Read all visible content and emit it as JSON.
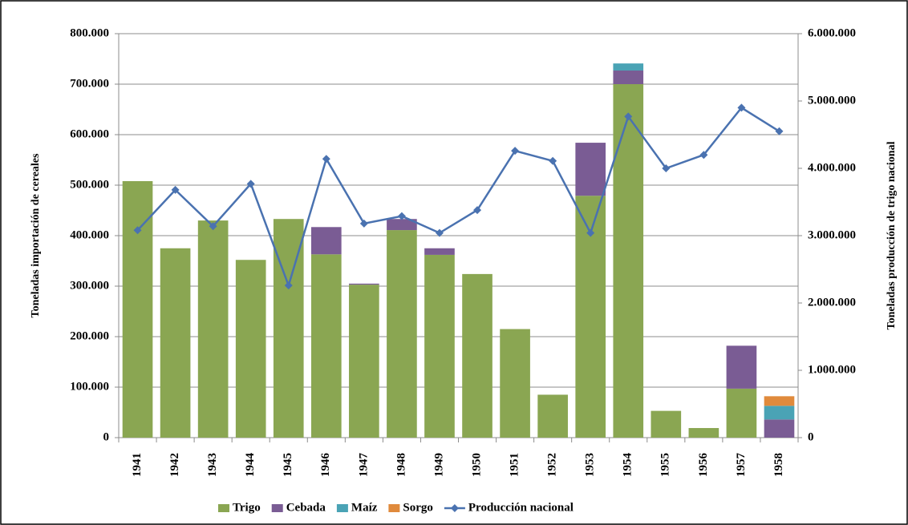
{
  "chart_data": {
    "type": "bar",
    "stacked": true,
    "ylabel": "Toneladas importación de cereales",
    "y2label": "Toneladas producción de trigo nacional",
    "categories": [
      "1941",
      "1942",
      "1943",
      "1944",
      "1945",
      "1946",
      "1947",
      "1948",
      "1949",
      "1950",
      "1951",
      "1952",
      "1953",
      "1954",
      "1955",
      "1956",
      "1957",
      "1958"
    ],
    "series": [
      {
        "name": "Trigo",
        "color": "#8aa652",
        "values": [
          508000,
          375000,
          430000,
          352000,
          433000,
          363000,
          303000,
          411000,
          362000,
          324000,
          215000,
          85000,
          479000,
          700000,
          53000,
          19000,
          97000,
          0
        ]
      },
      {
        "name": "Cebada",
        "color": "#7a5c94",
        "values": [
          0,
          0,
          0,
          0,
          0,
          54000,
          2000,
          22000,
          13000,
          0,
          0,
          0,
          105000,
          27000,
          0,
          0,
          85000,
          36000
        ]
      },
      {
        "name": "Maíz",
        "color": "#4aa3b5",
        "values": [
          0,
          0,
          0,
          0,
          0,
          0,
          0,
          0,
          0,
          0,
          0,
          0,
          0,
          14000,
          0,
          0,
          0,
          27000
        ]
      },
      {
        "name": "Sorgo",
        "color": "#e08a3c",
        "values": [
          0,
          0,
          0,
          0,
          0,
          0,
          0,
          0,
          0,
          0,
          0,
          0,
          0,
          0,
          0,
          0,
          0,
          19000
        ]
      },
      {
        "name": "Producción nacional",
        "color": "#4a72b0",
        "type": "line",
        "axis": "y2",
        "values": [
          3080000,
          3680000,
          3140000,
          3770000,
          2260000,
          4140000,
          3180000,
          3290000,
          3040000,
          3380000,
          4260000,
          4110000,
          3040000,
          4770000,
          4000000,
          4200000,
          4900000,
          4550000
        ]
      }
    ],
    "ylim": [
      0,
      800000
    ],
    "yticks": [
      0,
      {
        "value": 100000,
        "label": "100.000"
      },
      {
        "value": 200000,
        "label": "200.000"
      },
      {
        "value": 300000,
        "label": "300.000"
      },
      {
        "value": 400000,
        "label": "400.000"
      },
      {
        "value": 500000,
        "label": "500.000"
      },
      {
        "value": 600000,
        "label": "600.000"
      },
      {
        "value": 700000,
        "label": "700.000"
      },
      {
        "value": 800000,
        "label": "800.000"
      }
    ],
    "y2lim": [
      0,
      6000000
    ],
    "y2ticks": [
      0,
      {
        "value": 1000000,
        "label": "1.000.000"
      },
      {
        "value": 2000000,
        "label": "2.000.000"
      },
      {
        "value": 3000000,
        "label": "3.000.000"
      },
      {
        "value": 4000000,
        "label": "4.000.000"
      },
      {
        "value": 5000000,
        "label": "5.000.000"
      },
      {
        "value": 6000000,
        "label": "6.000.000"
      }
    ],
    "grid": true,
    "legend": "bottom"
  }
}
